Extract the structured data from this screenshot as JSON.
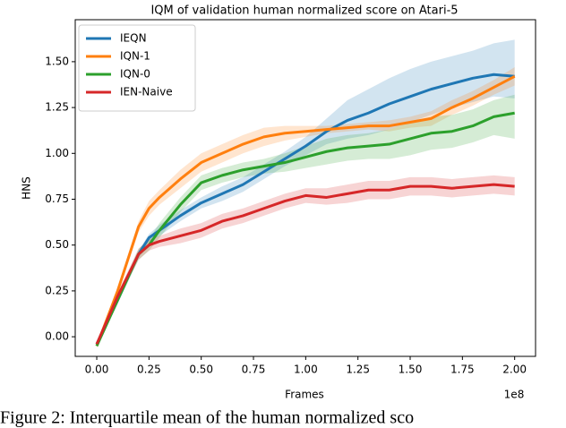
{
  "chart_data": {
    "type": "line",
    "title": "IQM of validation human normalized score on Atari-5",
    "x_label": "Frames",
    "y_label": "HNS",
    "x_offset_label": "1e8",
    "caption": "Figure 2: Interquartile mean of the human normalized sco",
    "legend": "upper left",
    "xlim": [
      -0.103,
      2.1
    ],
    "ylim": [
      -0.107,
      1.729
    ],
    "xticks": [
      {
        "value": 0,
        "label": "0.00"
      },
      {
        "value": 0.25,
        "label": "0.25"
      },
      {
        "value": 0.5,
        "label": "0.50"
      },
      {
        "value": 0.75,
        "label": "0.75"
      },
      {
        "value": 1,
        "label": "1.00"
      },
      {
        "value": 1.25,
        "label": "1.25"
      },
      {
        "value": 1.5,
        "label": "1.50"
      },
      {
        "value": 1.75,
        "label": "1.75"
      },
      {
        "value": 2,
        "label": "2.00"
      }
    ],
    "yticks": [
      {
        "value": 0,
        "label": "0.00"
      },
      {
        "value": 0.25,
        "label": "0.25"
      },
      {
        "value": 0.5,
        "label": "0.50"
      },
      {
        "value": 0.75,
        "label": "0.75"
      },
      {
        "value": 1,
        "label": "1.00"
      },
      {
        "value": 1.25,
        "label": "1.25"
      },
      {
        "value": 1.5,
        "label": "1.50"
      }
    ],
    "x": [
      0,
      0.1,
      0.2,
      0.25,
      0.3,
      0.4,
      0.5,
      0.6,
      0.7,
      0.8,
      0.9,
      1.0,
      1.1,
      1.2,
      1.3,
      1.4,
      1.5,
      1.6,
      1.7,
      1.8,
      1.9,
      2.0
    ],
    "series": [
      {
        "name": "IEQN",
        "color": "#1f77b4",
        "values": [
          -0.04,
          0.2,
          0.45,
          0.54,
          0.58,
          0.66,
          0.73,
          0.78,
          0.83,
          0.9,
          0.97,
          1.04,
          1.12,
          1.18,
          1.22,
          1.27,
          1.31,
          1.35,
          1.38,
          1.41,
          1.43,
          1.42
        ],
        "upper": [
          -0.03,
          0.22,
          0.47,
          0.56,
          0.61,
          0.69,
          0.76,
          0.82,
          0.87,
          0.94,
          1.01,
          1.09,
          1.19,
          1.29,
          1.35,
          1.41,
          1.46,
          1.5,
          1.53,
          1.56,
          1.6,
          1.62
        ],
        "lower": [
          -0.05,
          0.18,
          0.43,
          0.52,
          0.55,
          0.63,
          0.7,
          0.74,
          0.79,
          0.86,
          0.93,
          0.99,
          1.05,
          1.08,
          1.1,
          1.13,
          1.17,
          1.21,
          1.25,
          1.28,
          1.31,
          1.3
        ]
      },
      {
        "name": "IQN-1",
        "color": "#ff7f0e",
        "values": [
          -0.05,
          0.25,
          0.6,
          0.7,
          0.76,
          0.86,
          0.95,
          1.0,
          1.05,
          1.09,
          1.11,
          1.12,
          1.13,
          1.14,
          1.15,
          1.15,
          1.17,
          1.19,
          1.25,
          1.3,
          1.36,
          1.42
        ],
        "upper": [
          -0.04,
          0.27,
          0.63,
          0.74,
          0.8,
          0.91,
          1.0,
          1.05,
          1.1,
          1.14,
          1.15,
          1.15,
          1.15,
          1.16,
          1.17,
          1.18,
          1.2,
          1.23,
          1.29,
          1.34,
          1.4,
          1.47
        ],
        "lower": [
          -0.06,
          0.23,
          0.57,
          0.66,
          0.72,
          0.81,
          0.9,
          0.95,
          1.0,
          1.04,
          1.07,
          1.09,
          1.11,
          1.12,
          1.13,
          1.12,
          1.14,
          1.15,
          1.21,
          1.26,
          1.32,
          1.37
        ]
      },
      {
        "name": "IQN-0",
        "color": "#2ca02c",
        "values": [
          -0.05,
          0.2,
          0.45,
          0.5,
          0.58,
          0.72,
          0.84,
          0.88,
          0.91,
          0.93,
          0.95,
          0.98,
          1.01,
          1.03,
          1.04,
          1.05,
          1.08,
          1.11,
          1.12,
          1.15,
          1.2,
          1.22
        ],
        "upper": [
          -0.04,
          0.22,
          0.48,
          0.53,
          0.62,
          0.76,
          0.88,
          0.92,
          0.95,
          0.97,
          1.0,
          1.04,
          1.08,
          1.1,
          1.11,
          1.13,
          1.17,
          1.2,
          1.21,
          1.24,
          1.29,
          1.32
        ],
        "lower": [
          -0.06,
          0.18,
          0.42,
          0.47,
          0.54,
          0.68,
          0.8,
          0.84,
          0.87,
          0.89,
          0.9,
          0.92,
          0.94,
          0.96,
          0.97,
          0.97,
          0.99,
          1.02,
          1.03,
          1.06,
          1.1,
          1.08
        ]
      },
      {
        "name": "IEN-Naive",
        "color": "#d62728",
        "values": [
          -0.04,
          0.22,
          0.45,
          0.5,
          0.52,
          0.55,
          0.58,
          0.63,
          0.66,
          0.7,
          0.74,
          0.77,
          0.76,
          0.78,
          0.8,
          0.8,
          0.82,
          0.82,
          0.81,
          0.82,
          0.83,
          0.82
        ],
        "upper": [
          -0.03,
          0.24,
          0.48,
          0.53,
          0.55,
          0.59,
          0.62,
          0.67,
          0.7,
          0.74,
          0.78,
          0.81,
          0.81,
          0.83,
          0.85,
          0.85,
          0.87,
          0.87,
          0.86,
          0.87,
          0.88,
          0.87
        ],
        "lower": [
          -0.05,
          0.2,
          0.42,
          0.47,
          0.49,
          0.51,
          0.54,
          0.59,
          0.62,
          0.66,
          0.7,
          0.73,
          0.72,
          0.73,
          0.75,
          0.75,
          0.77,
          0.77,
          0.76,
          0.77,
          0.78,
          0.77
        ]
      }
    ]
  }
}
